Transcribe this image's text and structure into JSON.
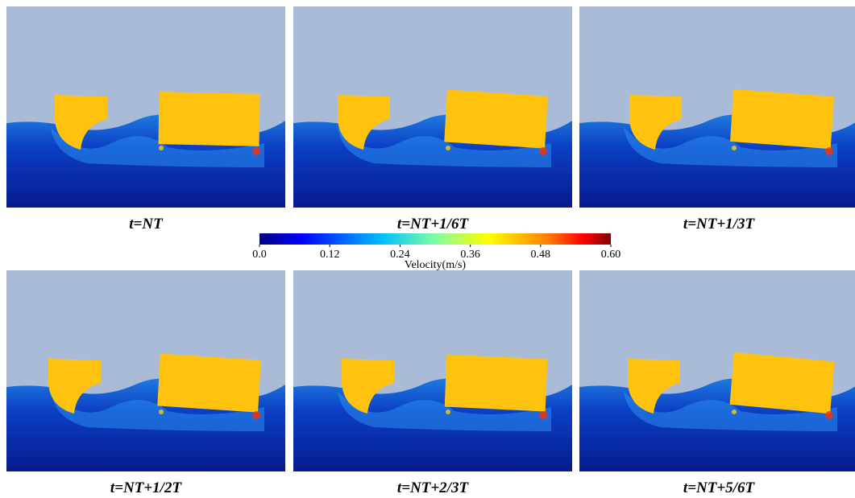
{
  "panels": [
    {
      "caption": "t=NT"
    },
    {
      "caption": "t=NT+1/6T"
    },
    {
      "caption": "t=NT+1/3T"
    },
    {
      "caption": "t=NT+1/2T"
    },
    {
      "caption": "t=NT+2/3T"
    },
    {
      "caption": "t=NT+5/6T"
    }
  ],
  "colorbar": {
    "label": "Velocity(m/s)",
    "lim": [
      0,
      0.6
    ],
    "ticks": [
      {
        "value": 0,
        "label": "0.0"
      },
      0.12,
      0.24,
      0.36,
      0.48,
      {
        "value": 0.6,
        "label": "0.60"
      }
    ]
  }
}
